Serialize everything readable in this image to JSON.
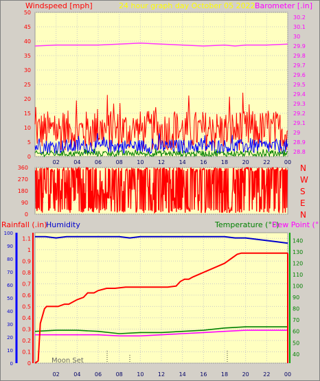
{
  "header": {
    "left_title": "Windspeed [mph]",
    "center_title": "24 hour graph day   October 05 2022",
    "right_title": "Barometer [.in]"
  },
  "direction_labels": [
    "N",
    "W",
    "S",
    "E",
    "N"
  ],
  "bottom_header": {
    "rainfall": "Rainfall (.in)",
    "humidity": "Humidity",
    "temperature": "Temperature (°F)",
    "dewpoint": "Dew Point (°F)"
  },
  "moon_label": "Moon Set",
  "chart_data": [
    {
      "type": "line",
      "name": "wind-barometer",
      "x_ticks": [
        "02",
        "04",
        "06",
        "08",
        "10",
        "12",
        "14",
        "16",
        "18",
        "20",
        "22",
        "00"
      ],
      "y_left_ticks": [
        "0",
        "5",
        "10",
        "15",
        "20",
        "25",
        "30",
        "35",
        "40",
        "45",
        "50"
      ],
      "y_left_range": [
        0,
        50
      ],
      "y_right_ticks": [
        "28.8",
        "28.9",
        "29",
        "29.1",
        "29.2",
        "29.3",
        "29.4",
        "29.5",
        "29.6",
        "29.7",
        "29.8",
        "29.9",
        "30",
        "30.1",
        "30.2"
      ],
      "y_right_range": [
        28.75,
        30.25
      ],
      "series": [
        {
          "role": "barometer",
          "color": "#ff33ff",
          "x": [
            0,
            2,
            4,
            6,
            8,
            10,
            12,
            14,
            16,
            18,
            19,
            20,
            22,
            24
          ],
          "values": [
            29.9,
            29.91,
            29.91,
            29.91,
            29.92,
            29.93,
            29.92,
            29.91,
            29.9,
            29.91,
            29.9,
            29.91,
            29.91,
            29.92
          ]
        },
        {
          "role": "gust",
          "color": "#ff0000",
          "avg": 9,
          "amp": 7
        },
        {
          "role": "wind",
          "color": "#0000ff",
          "avg": 3.5,
          "amp": 2.5
        },
        {
          "role": "calm",
          "color": "#008000",
          "avg": 1,
          "amp": 1
        }
      ]
    },
    {
      "type": "line",
      "name": "wind-direction",
      "y_ticks": [
        "0",
        "90",
        "180",
        "270",
        "360"
      ],
      "y_range": [
        0,
        360
      ]
    },
    {
      "type": "line",
      "name": "rain-humidity-temperature",
      "x_ticks": [
        "02",
        "04",
        "06",
        "08",
        "10",
        "12",
        "14",
        "16",
        "18",
        "20",
        "22",
        "00"
      ],
      "y_left_ticks": [
        "0",
        "10",
        "20",
        "30",
        "40",
        "50",
        "60",
        "70",
        "80",
        "90",
        "100"
      ],
      "y_left_range": [
        0,
        100
      ],
      "y_rain_ticks": [
        "0",
        "0.1",
        "0.2",
        "0.3",
        "0.4",
        "0.5",
        "0.6",
        "0.7",
        "0.8",
        "0.9",
        "1",
        "1.1"
      ],
      "y_rain_range": [
        0,
        1.15
      ],
      "y_right_ticks": [
        "40",
        "50",
        "60",
        "70",
        "80",
        "90",
        "100",
        "110",
        "120",
        "130",
        "140"
      ],
      "y_right_range": [
        32,
        147
      ],
      "series": [
        {
          "role": "humidity",
          "color": "#0000cc",
          "x": [
            0,
            1,
            2,
            3,
            5,
            8,
            9,
            10,
            12,
            14,
            16,
            18,
            19,
            20,
            21,
            22,
            23,
            24
          ],
          "values": [
            97,
            97,
            96,
            97,
            97,
            97,
            96,
            97,
            97,
            97,
            97,
            97,
            96,
            96,
            95,
            94,
            93,
            92
          ]
        },
        {
          "role": "rainfall",
          "color": "#ff0000",
          "x": [
            0,
            0.3,
            0.5,
            0.9,
            1.1,
            1.5,
            2.2,
            2.8,
            3.2,
            4.0,
            4.6,
            5.0,
            5.6,
            6.0,
            6.8,
            7.6,
            8.6,
            9.6,
            10.6,
            11.6,
            12.6,
            13.4,
            13.8,
            14.2,
            14.6,
            15.0,
            16.0,
            17.0,
            18.0,
            18.6,
            19.2,
            19.6,
            20.4,
            21.2,
            22.2,
            23.0,
            24.0
          ],
          "values": [
            0,
            0.02,
            0.35,
            0.48,
            0.5,
            0.5,
            0.5,
            0.52,
            0.52,
            0.56,
            0.58,
            0.62,
            0.62,
            0.64,
            0.66,
            0.66,
            0.67,
            0.67,
            0.67,
            0.67,
            0.67,
            0.68,
            0.72,
            0.74,
            0.74,
            0.76,
            0.8,
            0.84,
            0.88,
            0.92,
            0.96,
            0.97,
            0.97,
            0.97,
            0.97,
            0.97,
            0.97
          ]
        },
        {
          "role": "temperature",
          "color": "#008000",
          "x": [
            0,
            2,
            4,
            6,
            8,
            10,
            12,
            14,
            16,
            18,
            20,
            22,
            24
          ],
          "values": [
            60,
            61,
            61,
            60,
            58,
            59,
            59,
            60,
            61,
            63,
            64,
            64,
            64
          ]
        },
        {
          "role": "dewpoint",
          "color": "#ff00ff",
          "x": [
            0,
            2,
            4,
            6,
            8,
            10,
            12,
            14,
            16,
            18,
            20,
            22,
            24
          ],
          "values": [
            57,
            57,
            57,
            57,
            56,
            56,
            57,
            58,
            59,
            60,
            61,
            61,
            61
          ]
        }
      ]
    }
  ]
}
